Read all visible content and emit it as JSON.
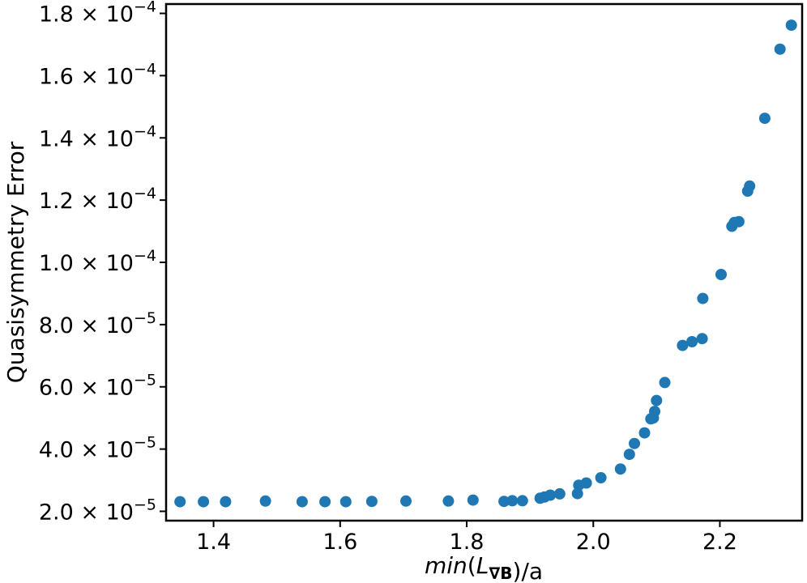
{
  "chart_data": {
    "type": "scatter",
    "title": "",
    "xlabel": "min(L∇B)/a",
    "ylabel": "Quasisymmetry Error",
    "xlim": [
      1.325,
      2.33
    ],
    "ylim": [
      1.7e-05,
      0.000183
    ],
    "grid": false,
    "x_ticks": [
      {
        "value": 1.4,
        "label": "1.4"
      },
      {
        "value": 1.6,
        "label": "1.6"
      },
      {
        "value": 1.8,
        "label": "1.8"
      },
      {
        "value": 2.0,
        "label": "2.0"
      },
      {
        "value": 2.2,
        "label": "2.2"
      }
    ],
    "y_ticks": [
      {
        "value": 2e-05,
        "mantissa": "2.0",
        "exponent": "−5"
      },
      {
        "value": 4e-05,
        "mantissa": "4.0",
        "exponent": "−5"
      },
      {
        "value": 6e-05,
        "mantissa": "6.0",
        "exponent": "−5"
      },
      {
        "value": 8e-05,
        "mantissa": "8.0",
        "exponent": "−5"
      },
      {
        "value": 0.0001,
        "mantissa": "1.0",
        "exponent": "−4"
      },
      {
        "value": 0.00012,
        "mantissa": "1.2",
        "exponent": "−4"
      },
      {
        "value": 0.00014,
        "mantissa": "1.4",
        "exponent": "−4"
      },
      {
        "value": 0.00016,
        "mantissa": "1.6",
        "exponent": "−4"
      },
      {
        "value": 0.00018,
        "mantissa": "1.8",
        "exponent": "−4"
      }
    ],
    "series": [
      {
        "color": "#1f77b4",
        "points": [
          [
            1.347,
            2.31e-05
          ],
          [
            1.384,
            2.31e-05
          ],
          [
            1.419,
            2.31e-05
          ],
          [
            1.482,
            2.33e-05
          ],
          [
            1.54,
            2.31e-05
          ],
          [
            1.576,
            2.31e-05
          ],
          [
            1.609,
            2.31e-05
          ],
          [
            1.65,
            2.32e-05
          ],
          [
            1.704,
            2.33e-05
          ],
          [
            1.771,
            2.33e-05
          ],
          [
            1.81,
            2.36e-05
          ],
          [
            1.859,
            2.32e-05
          ],
          [
            1.872,
            2.34e-05
          ],
          [
            1.888,
            2.34e-05
          ],
          [
            1.916,
            2.42e-05
          ],
          [
            1.923,
            2.46e-05
          ],
          [
            1.932,
            2.52e-05
          ],
          [
            1.947,
            2.56e-05
          ],
          [
            1.975,
            2.57e-05
          ],
          [
            1.977,
            2.84e-05
          ],
          [
            1.989,
            2.91e-05
          ],
          [
            2.012,
            3.08e-05
          ],
          [
            2.043,
            3.36e-05
          ],
          [
            2.057,
            3.83e-05
          ],
          [
            2.065,
            4.18e-05
          ],
          [
            2.081,
            4.52e-05
          ],
          [
            2.091,
            4.97e-05
          ],
          [
            2.095,
            5e-05
          ],
          [
            2.097,
            5.21e-05
          ],
          [
            2.1,
            5.56e-05
          ],
          [
            2.113,
            6.14e-05
          ],
          [
            2.141,
            7.33e-05
          ],
          [
            2.156,
            7.45e-05
          ],
          [
            2.172,
            7.55e-05
          ],
          [
            2.173,
            8.84e-05
          ],
          [
            2.202,
            9.61e-05
          ],
          [
            2.219,
            0.0001116
          ],
          [
            2.223,
            0.0001128
          ],
          [
            2.23,
            0.0001131
          ],
          [
            2.244,
            0.0001229
          ],
          [
            2.247,
            0.0001245
          ],
          [
            2.271,
            0.0001463
          ],
          [
            2.295,
            0.0001685
          ],
          [
            2.313,
            0.0001762
          ]
        ]
      }
    ]
  }
}
